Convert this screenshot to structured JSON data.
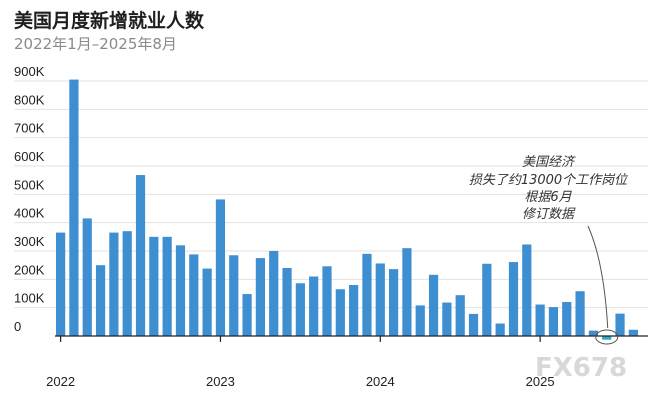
{
  "chart_data": {
    "type": "bar",
    "title": "美国月度新增就业人数",
    "subtitle": "2022年1月–2025年8月",
    "bar_color": "#3d8fd1",
    "highlight_color": "#2aa9c9",
    "ylim": [
      0,
      900000
    ],
    "y_ticks": [
      0,
      100000,
      200000,
      300000,
      400000,
      500000,
      600000,
      700000,
      800000,
      900000
    ],
    "y_tick_labels": [
      "0",
      "100K",
      "200K",
      "300K",
      "400K",
      "500K",
      "600K",
      "700K",
      "800K",
      "900K"
    ],
    "grid": true,
    "x_tick_labels": [
      "2022",
      "2023",
      "2024",
      "2025"
    ],
    "x_tick_months": [
      "2022-01",
      "2023-01",
      "2024-01",
      "2025-01"
    ],
    "categories": [
      "2022-01",
      "2022-02",
      "2022-03",
      "2022-04",
      "2022-05",
      "2022-06",
      "2022-07",
      "2022-08",
      "2022-09",
      "2022-10",
      "2022-11",
      "2022-12",
      "2023-01",
      "2023-02",
      "2023-03",
      "2023-04",
      "2023-05",
      "2023-06",
      "2023-07",
      "2023-08",
      "2023-09",
      "2023-10",
      "2023-11",
      "2023-12",
      "2024-01",
      "2024-02",
      "2024-03",
      "2024-04",
      "2024-05",
      "2024-06",
      "2024-07",
      "2024-08",
      "2024-09",
      "2024-10",
      "2024-11",
      "2024-12",
      "2025-01",
      "2025-02",
      "2025-03",
      "2025-04",
      "2025-05",
      "2025-06",
      "2025-07",
      "2025-08"
    ],
    "values": [
      365000,
      905000,
      415000,
      250000,
      365000,
      370000,
      568000,
      350000,
      350000,
      320000,
      288000,
      238000,
      482000,
      285000,
      148000,
      275000,
      300000,
      240000,
      186000,
      210000,
      246000,
      165000,
      180000,
      290000,
      256000,
      236000,
      310000,
      108000,
      216000,
      118000,
      144000,
      78000,
      255000,
      44000,
      261000,
      323000,
      111000,
      102000,
      120000,
      158000,
      19000,
      -13000,
      79000,
      22000
    ],
    "highlight_index": 41,
    "annotation": {
      "lines": [
        "美国经济",
        "损失了约13000个工作岗位",
        "根据6月",
        "修订数据"
      ]
    },
    "watermark": "FX678"
  }
}
